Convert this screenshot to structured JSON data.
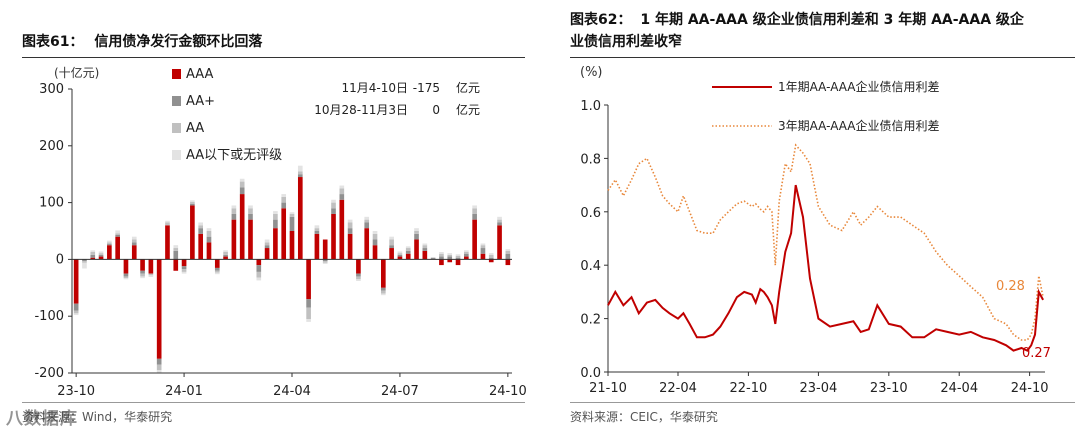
{
  "watermark": "八数据库",
  "left": {
    "figure_no": "图表61：",
    "title": "信用债净发行金额环比回落",
    "source": "资料来源：Wind，华泰研究",
    "annotations": [
      {
        "period": "11月4-10日",
        "value": "-175",
        "unit": "亿元"
      },
      {
        "period": "10月28-11月3日",
        "value": "0",
        "unit": "亿元"
      }
    ],
    "colors": {
      "AAA": "#c00000",
      "AA+": "#909090",
      "AA": "#c0c0c0",
      "AA以下或无评级": "#e3e3e3"
    },
    "chart_data": {
      "type": "bar",
      "stacked": true,
      "ylabel": "(十亿元)",
      "ylim": [
        -200,
        300
      ],
      "yticks": [
        -200,
        -100,
        0,
        100,
        200,
        300
      ],
      "xtick_labels": [
        {
          "label": "23-10",
          "index": 0
        },
        {
          "label": "24-01",
          "index": 13
        },
        {
          "label": "24-04",
          "index": 26
        },
        {
          "label": "24-07",
          "index": 39
        },
        {
          "label": "24-10",
          "index": 52
        }
      ],
      "legend": [
        "AAA",
        "AA+",
        "AA",
        "AA以下或无评级"
      ],
      "legend_position": "top",
      "series": [
        {
          "name": "AAA",
          "values": [
            -78,
            0,
            3,
            5,
            25,
            40,
            -25,
            25,
            -20,
            -25,
            -175,
            60,
            -20,
            -12,
            95,
            45,
            30,
            -15,
            5,
            70,
            115,
            70,
            -10,
            20,
            55,
            90,
            50,
            145,
            -70,
            45,
            35,
            80,
            105,
            45,
            -25,
            55,
            25,
            -50,
            20,
            5,
            10,
            35,
            15,
            0,
            -10,
            -5,
            -10,
            5,
            70,
            10,
            -5,
            60,
            -10
          ]
        },
        {
          "name": "AA+",
          "values": [
            -12,
            -3,
            5,
            3,
            2,
            3,
            -5,
            5,
            -5,
            0,
            -10,
            0,
            15,
            -5,
            3,
            10,
            10,
            -5,
            3,
            10,
            12,
            10,
            -12,
            5,
            15,
            10,
            25,
            5,
            -15,
            5,
            -3,
            10,
            10,
            10,
            -5,
            10,
            10,
            -5,
            5,
            3,
            5,
            10,
            5,
            3,
            5,
            5,
            3,
            5,
            10,
            10,
            3,
            5,
            10
          ]
        },
        {
          "name": "AA",
          "values": [
            -5,
            -3,
            5,
            3,
            3,
            3,
            -3,
            5,
            -5,
            -3,
            -10,
            5,
            5,
            -5,
            3,
            5,
            10,
            -3,
            5,
            10,
            10,
            10,
            -10,
            5,
            10,
            10,
            5,
            5,
            -20,
            5,
            -3,
            10,
            10,
            10,
            -5,
            5,
            10,
            -5,
            10,
            3,
            5,
            5,
            5,
            0,
            5,
            3,
            3,
            3,
            10,
            5,
            5,
            5,
            5
          ]
        },
        {
          "name": "AA以下或无评级",
          "values": [
            -3,
            -10,
            3,
            3,
            3,
            5,
            -2,
            5,
            -3,
            -3,
            -5,
            3,
            5,
            -3,
            3,
            5,
            5,
            -3,
            3,
            5,
            5,
            5,
            -5,
            5,
            5,
            5,
            3,
            10,
            -5,
            5,
            -2,
            5,
            5,
            5,
            -3,
            5,
            5,
            -3,
            5,
            3,
            3,
            5,
            3,
            0,
            3,
            3,
            3,
            3,
            5,
            3,
            3,
            5,
            3
          ]
        }
      ]
    }
  },
  "right": {
    "figure_no": "图表62：",
    "title_line1": "1 年期 AA-AAA 级企业债信用利差和 3 年期 AA-AAA 级企",
    "title_line2": "业债信用利差收窄",
    "source": "资料来源：CEIC，华泰研究",
    "colors": {
      "one_year": "#c00000",
      "three_year": "#e8873a"
    },
    "chart_data": {
      "type": "line",
      "ylabel": "(%)",
      "ylim": [
        0.0,
        1.0
      ],
      "yticks": [
        "0.0",
        "0.2",
        "0.4",
        "0.6",
        "0.8",
        "1.0"
      ],
      "xticks": [
        "21-10",
        "22-04",
        "22-10",
        "23-04",
        "23-10",
        "24-04",
        "24-10"
      ],
      "legend_position": "top",
      "end_labels": {
        "one_year": "0.27",
        "three_year": "0.28"
      },
      "series": [
        {
          "name": "1年期AA-AAA企业债信用利差",
          "style": "solid",
          "x": [
            "2021-10-01",
            "2021-10-20",
            "2021-11-10",
            "2021-12-01",
            "2021-12-20",
            "2022-01-10",
            "2022-02-01",
            "2022-02-20",
            "2022-03-10",
            "2022-04-01",
            "2022-04-15",
            "2022-05-01",
            "2022-05-20",
            "2022-06-10",
            "2022-07-01",
            "2022-07-20",
            "2022-08-10",
            "2022-09-01",
            "2022-09-20",
            "2022-10-10",
            "2022-10-20",
            "2022-11-01",
            "2022-11-10",
            "2022-11-20",
            "2022-12-01",
            "2022-12-10",
            "2022-12-20",
            "2023-01-05",
            "2023-01-20",
            "2023-02-01",
            "2023-02-20",
            "2023-03-10",
            "2023-04-01",
            "2023-05-01",
            "2023-06-01",
            "2023-07-01",
            "2023-07-20",
            "2023-08-10",
            "2023-09-01",
            "2023-10-01",
            "2023-11-01",
            "2023-12-01",
            "2024-01-01",
            "2024-02-01",
            "2024-03-01",
            "2024-04-01",
            "2024-05-01",
            "2024-06-01",
            "2024-07-01",
            "2024-08-01",
            "2024-08-20",
            "2024-09-10",
            "2024-09-25",
            "2024-10-05",
            "2024-10-15",
            "2024-10-25",
            "2024-11-05"
          ],
          "values": [
            0.25,
            0.3,
            0.25,
            0.28,
            0.22,
            0.26,
            0.27,
            0.24,
            0.22,
            0.2,
            0.22,
            0.18,
            0.13,
            0.13,
            0.14,
            0.17,
            0.22,
            0.28,
            0.3,
            0.29,
            0.26,
            0.31,
            0.3,
            0.28,
            0.25,
            0.18,
            0.3,
            0.45,
            0.52,
            0.7,
            0.58,
            0.35,
            0.2,
            0.17,
            0.18,
            0.19,
            0.15,
            0.16,
            0.25,
            0.18,
            0.17,
            0.13,
            0.13,
            0.16,
            0.15,
            0.14,
            0.15,
            0.13,
            0.12,
            0.1,
            0.08,
            0.09,
            0.08,
            0.1,
            0.14,
            0.3,
            0.27
          ]
        },
        {
          "name": "3年期AA-AAA企业债信用利差",
          "style": "dotted",
          "x": [
            "2021-10-01",
            "2021-10-20",
            "2021-11-10",
            "2021-12-01",
            "2021-12-20",
            "2022-01-10",
            "2022-02-01",
            "2022-02-20",
            "2022-03-10",
            "2022-04-01",
            "2022-04-15",
            "2022-05-01",
            "2022-05-20",
            "2022-06-10",
            "2022-07-01",
            "2022-07-20",
            "2022-08-10",
            "2022-09-01",
            "2022-09-20",
            "2022-10-10",
            "2022-10-20",
            "2022-11-01",
            "2022-11-10",
            "2022-11-20",
            "2022-12-01",
            "2022-12-10",
            "2022-12-20",
            "2023-01-05",
            "2023-01-20",
            "2023-02-01",
            "2023-02-20",
            "2023-03-10",
            "2023-04-01",
            "2023-05-01",
            "2023-06-01",
            "2023-07-01",
            "2023-07-20",
            "2023-08-10",
            "2023-09-01",
            "2023-10-01",
            "2023-11-01",
            "2023-12-01",
            "2024-01-01",
            "2024-02-01",
            "2024-03-01",
            "2024-04-01",
            "2024-05-01",
            "2024-06-01",
            "2024-07-01",
            "2024-08-01",
            "2024-08-20",
            "2024-09-10",
            "2024-09-25",
            "2024-10-05",
            "2024-10-15",
            "2024-10-25",
            "2024-11-05"
          ],
          "values": [
            0.68,
            0.72,
            0.66,
            0.72,
            0.78,
            0.8,
            0.73,
            0.66,
            0.63,
            0.6,
            0.66,
            0.6,
            0.53,
            0.52,
            0.52,
            0.57,
            0.6,
            0.63,
            0.64,
            0.62,
            0.63,
            0.61,
            0.6,
            0.62,
            0.6,
            0.4,
            0.64,
            0.78,
            0.75,
            0.85,
            0.82,
            0.78,
            0.62,
            0.55,
            0.53,
            0.6,
            0.55,
            0.58,
            0.62,
            0.58,
            0.58,
            0.55,
            0.52,
            0.45,
            0.4,
            0.36,
            0.32,
            0.28,
            0.2,
            0.18,
            0.14,
            0.12,
            0.12,
            0.14,
            0.2,
            0.36,
            0.28
          ]
        }
      ]
    }
  }
}
